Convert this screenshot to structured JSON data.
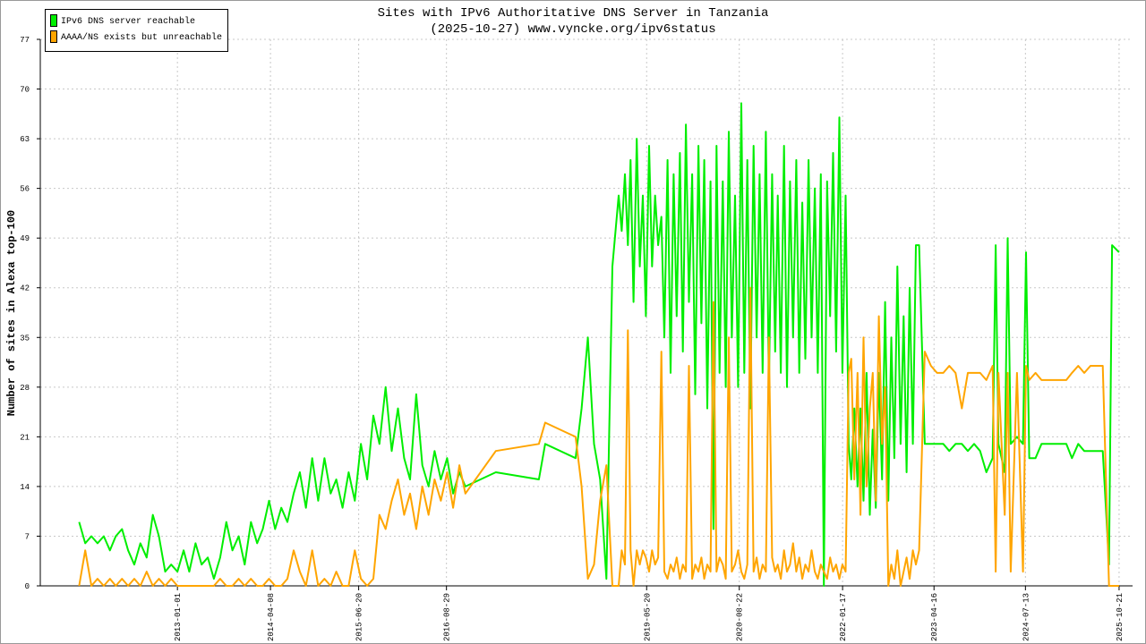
{
  "chart_data": {
    "type": "line",
    "title": "Sites with IPv6 Authoritative DNS Server in Tanzania",
    "subtitle": "(2025-10-27) www.vyncke.org/ipv6status",
    "y_label": "Number of sites in Alexa top-100",
    "ylim": [
      0,
      77
    ],
    "yticks": [
      0,
      7,
      14,
      21,
      28,
      35,
      42,
      49,
      56,
      63,
      70,
      77
    ],
    "xlim": [
      "2011-02-20",
      "2025-12-27"
    ],
    "xticks": [
      "2013-01-01",
      "2014-04-08",
      "2015-06-20",
      "2016-08-29",
      "2019-05-20",
      "2020-08-22",
      "2022-01-17",
      "2023-04-16",
      "2024-07-13",
      "2025-10-21"
    ],
    "grid": true,
    "legend": "upper left",
    "x": [
      "2011-09-01",
      "2011-10-01",
      "2011-11-01",
      "2011-12-01",
      "2012-01-01",
      "2012-02-01",
      "2012-03-01",
      "2012-04-01",
      "2012-05-01",
      "2012-06-01",
      "2012-07-01",
      "2012-08-01",
      "2012-09-01",
      "2012-10-01",
      "2012-11-01",
      "2012-12-01",
      "2013-01-01",
      "2013-02-01",
      "2013-03-01",
      "2013-04-01",
      "2013-05-01",
      "2013-06-01",
      "2013-07-01",
      "2013-08-01",
      "2013-09-01",
      "2013-10-01",
      "2013-11-01",
      "2013-12-01",
      "2014-01-01",
      "2014-02-01",
      "2014-03-01",
      "2014-04-01",
      "2014-05-01",
      "2014-06-01",
      "2014-07-01",
      "2014-08-01",
      "2014-09-01",
      "2014-10-01",
      "2014-11-01",
      "2014-12-01",
      "2015-01-01",
      "2015-02-01",
      "2015-03-01",
      "2015-04-01",
      "2015-05-01",
      "2015-06-01",
      "2015-07-01",
      "2015-08-01",
      "2015-09-01",
      "2015-10-01",
      "2015-11-01",
      "2015-12-01",
      "2016-01-01",
      "2016-02-01",
      "2016-03-01",
      "2016-04-01",
      "2016-05-01",
      "2016-06-01",
      "2016-07-01",
      "2016-08-01",
      "2016-09-01",
      "2016-10-01",
      "2016-11-01",
      "2016-12-01",
      "2017-05-01",
      "2017-12-01",
      "2018-01-01",
      "2018-06-01",
      "2018-07-01",
      "2018-08-01",
      "2018-09-01",
      "2018-10-01",
      "2018-11-01",
      "2018-12-01",
      "2019-01-01",
      "2019-01-16",
      "2019-02-01",
      "2019-02-16",
      "2019-03-01",
      "2019-03-16",
      "2019-04-01",
      "2019-04-16",
      "2019-05-01",
      "2019-05-16",
      "2019-06-01",
      "2019-06-16",
      "2019-07-01",
      "2019-07-16",
      "2019-08-01",
      "2019-08-16",
      "2019-09-01",
      "2019-09-16",
      "2019-10-01",
      "2019-10-16",
      "2019-11-01",
      "2019-11-16",
      "2019-12-01",
      "2019-12-16",
      "2020-01-01",
      "2020-01-16",
      "2020-02-01",
      "2020-02-16",
      "2020-03-01",
      "2020-03-16",
      "2020-04-01",
      "2020-04-16",
      "2020-05-01",
      "2020-05-16",
      "2020-06-01",
      "2020-06-16",
      "2020-07-01",
      "2020-07-16",
      "2020-08-01",
      "2020-08-16",
      "2020-09-01",
      "2020-09-16",
      "2020-10-01",
      "2020-10-16",
      "2020-11-01",
      "2020-11-16",
      "2020-12-01",
      "2020-12-16",
      "2021-01-01",
      "2021-01-16",
      "2021-02-01",
      "2021-02-16",
      "2021-03-01",
      "2021-03-16",
      "2021-04-01",
      "2021-04-16",
      "2021-05-01",
      "2021-05-16",
      "2021-06-01",
      "2021-06-16",
      "2021-07-01",
      "2021-07-16",
      "2021-08-01",
      "2021-08-16",
      "2021-09-01",
      "2021-09-16",
      "2021-10-01",
      "2021-10-16",
      "2021-11-01",
      "2021-11-16",
      "2021-12-01",
      "2021-12-16",
      "2022-01-01",
      "2022-01-16",
      "2022-02-01",
      "2022-02-16",
      "2022-03-01",
      "2022-03-16",
      "2022-04-01",
      "2022-04-16",
      "2022-05-01",
      "2022-05-16",
      "2022-06-01",
      "2022-06-16",
      "2022-07-01",
      "2022-07-16",
      "2022-08-01",
      "2022-08-16",
      "2022-09-01",
      "2022-09-16",
      "2022-10-01",
      "2022-10-16",
      "2022-11-01",
      "2022-11-16",
      "2022-12-01",
      "2022-12-16",
      "2023-01-01",
      "2023-01-16",
      "2023-02-01",
      "2023-03-01",
      "2023-04-01",
      "2023-05-01",
      "2023-06-01",
      "2023-07-01",
      "2023-08-01",
      "2023-09-01",
      "2023-10-01",
      "2023-11-01",
      "2023-12-01",
      "2024-01-01",
      "2024-02-01",
      "2024-02-16",
      "2024-03-01",
      "2024-04-01",
      "2024-04-16",
      "2024-05-01",
      "2024-06-01",
      "2024-07-01",
      "2024-07-16",
      "2024-08-01",
      "2024-09-01",
      "2024-10-01",
      "2024-11-01",
      "2024-12-01",
      "2025-01-01",
      "2025-02-01",
      "2025-03-01",
      "2025-04-01",
      "2025-05-01",
      "2025-06-01",
      "2025-07-01",
      "2025-08-01",
      "2025-09-01",
      "2025-09-16",
      "2025-10-21"
    ],
    "series": [
      {
        "name": "IPv6 DNS server reachable",
        "color": "#00ee00",
        "values": [
          9,
          6,
          7,
          6,
          7,
          5,
          7,
          8,
          5,
          3,
          6,
          4,
          10,
          7,
          2,
          3,
          2,
          5,
          2,
          6,
          3,
          4,
          1,
          4,
          9,
          5,
          7,
          3,
          9,
          6,
          8,
          12,
          8,
          11,
          9,
          13,
          16,
          11,
          18,
          12,
          18,
          13,
          15,
          11,
          16,
          12,
          20,
          15,
          24,
          20,
          28,
          19,
          25,
          18,
          15,
          27,
          17,
          14,
          19,
          15,
          18,
          13,
          16,
          14,
          16,
          15,
          20,
          18,
          25,
          35,
          20,
          15,
          1,
          45,
          55,
          50,
          58,
          48,
          60,
          40,
          63,
          45,
          55,
          38,
          62,
          45,
          55,
          48,
          52,
          35,
          60,
          30,
          58,
          38,
          61,
          33,
          65,
          40,
          58,
          27,
          62,
          37,
          60,
          25,
          57,
          8,
          62,
          30,
          57,
          28,
          64,
          35,
          55,
          28,
          68,
          30,
          60,
          25,
          62,
          35,
          58,
          30,
          64,
          28,
          58,
          33,
          55,
          30,
          62,
          28,
          57,
          35,
          60,
          30,
          54,
          32,
          60,
          35,
          56,
          30,
          58,
          0,
          57,
          38,
          61,
          33,
          66,
          30,
          55,
          20,
          15,
          25,
          14,
          25,
          12,
          30,
          10,
          22,
          11,
          30,
          15,
          40,
          12,
          35,
          18,
          45,
          20,
          38,
          16,
          42,
          20,
          48,
          48,
          20,
          20,
          20,
          20,
          19,
          20,
          20,
          19,
          20,
          19,
          16,
          18,
          48,
          20,
          16,
          49,
          20,
          21,
          20,
          47,
          18,
          18,
          20,
          20,
          20,
          20,
          20,
          18,
          20,
          19,
          19,
          19,
          19,
          3,
          48,
          47
        ]
      },
      {
        "name": "AAAA/NS exists but unreachable",
        "color": "#ffa500",
        "values": [
          0,
          5,
          0,
          1,
          0,
          1,
          0,
          1,
          0,
          1,
          0,
          2,
          0,
          1,
          0,
          1,
          0,
          0,
          0,
          0,
          0,
          0,
          0,
          1,
          0,
          0,
          1,
          0,
          1,
          0,
          0,
          1,
          0,
          0,
          1,
          5,
          2,
          0,
          5,
          0,
          1,
          0,
          2,
          0,
          0,
          5,
          1,
          0,
          1,
          10,
          8,
          12,
          15,
          10,
          13,
          8,
          14,
          10,
          15,
          12,
          16,
          11,
          17,
          13,
          19,
          20,
          23,
          21,
          14,
          1,
          3,
          12,
          17,
          0,
          0,
          5,
          3,
          36,
          5,
          0,
          5,
          3,
          5,
          4,
          2,
          5,
          3,
          4,
          33,
          2,
          1,
          3,
          2,
          4,
          1,
          3,
          2,
          31,
          1,
          3,
          2,
          4,
          1,
          3,
          2,
          40,
          2,
          4,
          3,
          1,
          35,
          2,
          3,
          5,
          2,
          1,
          3,
          42,
          2,
          4,
          1,
          3,
          2,
          35,
          4,
          2,
          3,
          1,
          5,
          2,
          3,
          6,
          2,
          4,
          1,
          3,
          2,
          5,
          2,
          1,
          3,
          2,
          1,
          4,
          2,
          3,
          1,
          3,
          2,
          30,
          32,
          15,
          30,
          10,
          35,
          14,
          25,
          30,
          12,
          38,
          20,
          28,
          0,
          3,
          1,
          5,
          0,
          2,
          4,
          1,
          5,
          3,
          5,
          33,
          31,
          30,
          30,
          31,
          30,
          25,
          30,
          30,
          30,
          29,
          31,
          2,
          30,
          10,
          30,
          2,
          30,
          2,
          31,
          29,
          30,
          29,
          29,
          29,
          29,
          29,
          30,
          31,
          30,
          31,
          31,
          31,
          0,
          0,
          0
        ]
      }
    ]
  }
}
